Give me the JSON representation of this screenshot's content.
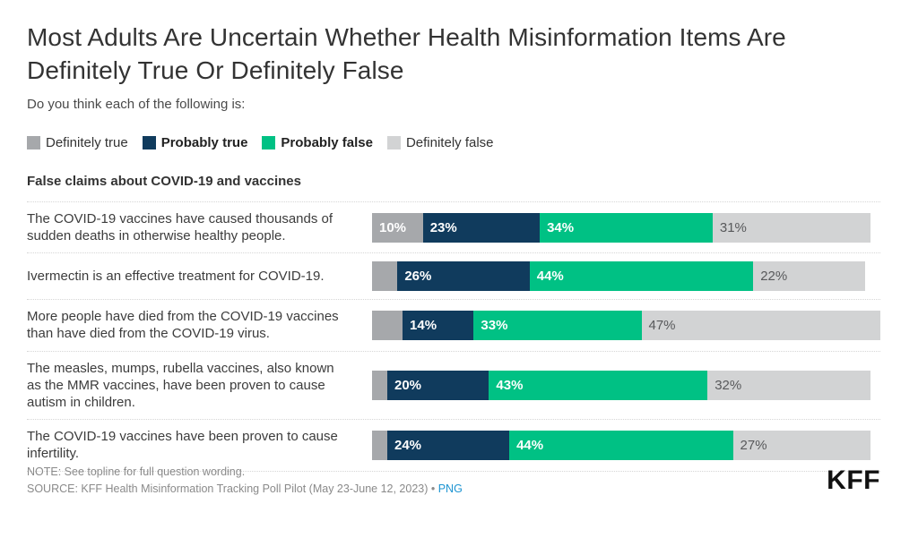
{
  "chart_data": {
    "type": "bar",
    "stacked": true,
    "orientation": "horizontal",
    "title": "Most Adults Are Uncertain Whether Health Misinformation Items Are Definitely True Or Definitely False",
    "subtitle": "Do you think each of the following is:",
    "section_header": "False claims about COVID-19 and vaccines",
    "xlim": [
      0,
      100
    ],
    "legend": [
      {
        "label": "Definitely true",
        "color": "#a6a8ab",
        "bold": false
      },
      {
        "label": "Probably true",
        "color": "#103b5d",
        "bold": true
      },
      {
        "label": "Probably false",
        "color": "#00c184",
        "bold": true
      },
      {
        "label": "Definitely false",
        "color": "#d2d3d4",
        "bold": false
      }
    ],
    "rows": [
      {
        "label": "The COVID-19 vaccines have caused thousands of sudden deaths in otherwise healthy people.",
        "values": [
          10,
          23,
          34,
          31
        ],
        "labels": [
          "10%",
          "23%",
          "34%",
          "31%"
        ]
      },
      {
        "label": "Ivermectin is an effective treatment for COVID-19.",
        "values": [
          5,
          26,
          44,
          22
        ],
        "labels": [
          "",
          "26%",
          "44%",
          "22%"
        ]
      },
      {
        "label": "More people have died from the COVID-19 vaccines than have died from the COVID-19 virus.",
        "values": [
          6,
          14,
          33,
          47
        ],
        "labels": [
          "",
          "14%",
          "33%",
          "47%"
        ]
      },
      {
        "label": "The measles, mumps, rubella vaccines, also known as the MMR vaccines, have been proven to cause autism in children.",
        "values": [
          3,
          20,
          43,
          32
        ],
        "labels": [
          "",
          "20%",
          "43%",
          "32%"
        ]
      },
      {
        "label": "The COVID-19 vaccines have been proven to cause infertility.",
        "values": [
          3,
          24,
          44,
          27
        ],
        "labels": [
          "",
          "24%",
          "44%",
          "27%"
        ]
      }
    ]
  },
  "footer": {
    "note": "NOTE: See topline for full question wording.",
    "source_prefix": "SOURCE: KFF Health Misinformation Tracking Poll Pilot (May 23-June 12, 2023) • ",
    "png_link": "PNG",
    "logo": "KFF"
  }
}
